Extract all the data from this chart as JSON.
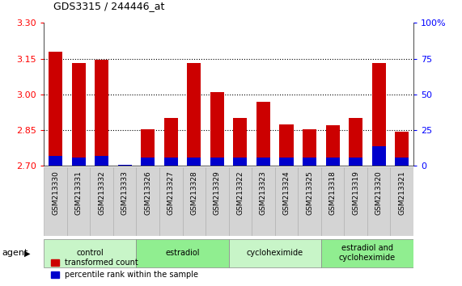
{
  "title": "GDS3315 / 244446_at",
  "samples": [
    "GSM213330",
    "GSM213331",
    "GSM213332",
    "GSM213333",
    "GSM213326",
    "GSM213327",
    "GSM213328",
    "GSM213329",
    "GSM213322",
    "GSM213323",
    "GSM213324",
    "GSM213325",
    "GSM213318",
    "GSM213319",
    "GSM213320",
    "GSM213321"
  ],
  "transformed_count": [
    3.18,
    3.13,
    3.145,
    2.705,
    2.855,
    2.9,
    3.13,
    3.01,
    2.9,
    2.97,
    2.875,
    2.855,
    2.87,
    2.9,
    3.13,
    2.845
  ],
  "percentile_values": [
    7,
    6,
    7,
    1,
    6,
    6,
    6,
    6,
    6,
    6,
    6,
    6,
    6,
    6,
    14,
    6
  ],
  "groups": [
    {
      "label": "control",
      "start": 0,
      "end": 4,
      "color": "#c8f5c8"
    },
    {
      "label": "estradiol",
      "start": 4,
      "end": 8,
      "color": "#90ee90"
    },
    {
      "label": "cycloheximide",
      "start": 8,
      "end": 12,
      "color": "#c8f5c8"
    },
    {
      "label": "estradiol and\ncycloheximide",
      "start": 12,
      "end": 16,
      "color": "#90ee90"
    }
  ],
  "ylim": [
    2.7,
    3.3
  ],
  "yticks": [
    2.7,
    2.85,
    3.0,
    3.15,
    3.3
  ],
  "right_yticks": [
    0,
    25,
    50,
    75,
    100
  ],
  "bar_color": "#cc0000",
  "percentile_color": "#0000cc",
  "bar_width": 0.6,
  "base_value": 2.7,
  "tick_bg_color": "#d4d4d4"
}
